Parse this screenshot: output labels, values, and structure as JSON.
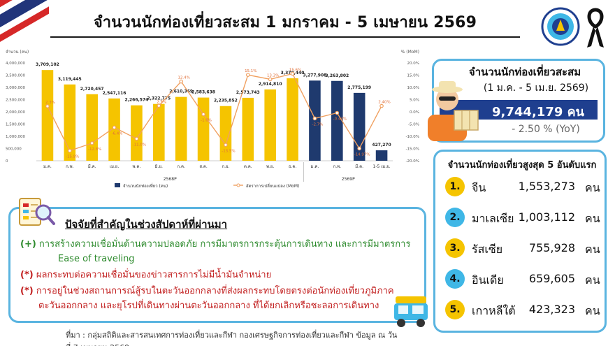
{
  "header": {
    "title": "จำนวนนักท่องเที่ยวสะสม 1 มกราคม - 5 เมษายน 2569"
  },
  "chart_data": {
    "type": "bar",
    "categories": [
      "ม.ค.",
      "ก.พ.",
      "มี.ค.",
      "เม.ย.",
      "พ.ค.",
      "มิ.ย.",
      "ก.ค.",
      "ส.ค.",
      "ก.ย.",
      "ต.ค.",
      "พ.ย.",
      "ธ.ค.",
      "ม.ค.",
      "ก.พ.",
      "มี.ค.",
      "1-5 เม.ย."
    ],
    "groups": [
      {
        "label": "2568P",
        "start": 0,
        "end": 11
      },
      {
        "label": "2569P",
        "start": 12,
        "end": 15
      }
    ],
    "series": [
      {
        "name": "จำนวนนักท่องเที่ยว (คน)",
        "kind": "bar",
        "values": [
          3709102,
          3119445,
          2720457,
          2547116,
          2266574,
          2322775,
          2610369,
          2583638,
          2235852,
          2573743,
          2914810,
          3370440,
          3277908,
          3263802,
          2775199,
          427270
        ],
        "labels": [
          "3,709,102",
          "3,119,445",
          "2,720,457",
          "2,547,116",
          "2,266,574",
          "2,322,775",
          "2,610,369",
          "2,583,638",
          "2,235,852",
          "2,573,743",
          "2,914,810",
          "3,370,440",
          "3,277,908",
          "3,263,802",
          "2,775,199",
          "427,270"
        ],
        "colors": [
          "#f5c400",
          "#f5c400",
          "#f5c400",
          "#f5c400",
          "#f5c400",
          "#f5c400",
          "#f5c400",
          "#f5c400",
          "#f5c400",
          "#f5c400",
          "#f5c400",
          "#f5c400",
          "#1f3a6e",
          "#1f3a6e",
          "#1f3a6e",
          "#1f3a6e"
        ]
      },
      {
        "name": "อัตราการเปลี่ยนแปลง (MoM)",
        "kind": "line",
        "color": "#f0a060",
        "values": [
          2.3,
          -15.9,
          -12.8,
          -6.4,
          -11.0,
          2.5,
          12.4,
          -1.0,
          -13.5,
          15.1,
          13.3,
          15.6,
          -2.7,
          -0.43,
          -14.97,
          2.4
        ],
        "labels": [
          "2.3%",
          "-15.9%",
          "-12.8%",
          "-6.4%",
          "-11.0%",
          "2.5%",
          "12.4%",
          "-1.0%",
          "-13.5%",
          "15.1%",
          "13.3%",
          "15.6%",
          "-2.7%",
          "-0.43%",
          "-14.97%",
          "2.40%"
        ]
      }
    ],
    "ylabel_left": "จำนวน (คน)",
    "ylabel_right": "% (MoM)",
    "ylim_left": [
      0,
      4000000
    ],
    "ylim_right": [
      -20,
      20
    ],
    "yticks_left": [
      "0",
      "500,000",
      "1,000,000",
      "1,500,000",
      "2,000,000",
      "2,500,000",
      "3,000,000",
      "3,500,000",
      "4,000,000"
    ],
    "yticks_right": [
      "-20.0%",
      "-15.0%",
      "-10.0%",
      "-5.0%",
      "0.0%",
      "5.0%",
      "10.0%",
      "15.0%",
      "20.0%"
    ],
    "grid": false,
    "legend_position": "bottom"
  },
  "total_box": {
    "title": "จำนวนนักท่องเที่ยวสะสม",
    "subtitle": "(1 ม.ค. - 5 เม.ย. 2569)",
    "value": "9,744,179 คน",
    "yoy": "- 2.50 % (YoY)"
  },
  "top5": {
    "title": "จำนวนนักท่องเที่ยวสูงสุด 5 อันดับแรก",
    "unit": "คน",
    "items": [
      {
        "rank": "1.",
        "country": "จีน",
        "value": "1,553,273",
        "color": "#f5c400"
      },
      {
        "rank": "2.",
        "country": "มาเลเซีย",
        "value": "1,003,112",
        "color": "#3fb7e6"
      },
      {
        "rank": "3.",
        "country": "รัสเซีย",
        "value": "755,928",
        "color": "#f5c400"
      },
      {
        "rank": "4.",
        "country": "อินเดีย",
        "value": "659,605",
        "color": "#3fb7e6"
      },
      {
        "rank": "5.",
        "country": "เกาหลีใต้",
        "value": "423,323",
        "color": "#f5c400"
      }
    ]
  },
  "factors": {
    "title": "ปัจจัยที่สำคัญในช่วงสัปดาห์ที่ผ่านมา",
    "items": [
      {
        "mark": "(+)",
        "lines": [
          "การสร้างความเชื่อมั่นด้านความปลอดภัย การมีมาตรการกระตุ้นการเดินทาง และการมีมาตรการ",
          "Ease of traveling"
        ],
        "tone": "positive"
      },
      {
        "mark": "(*)",
        "lines": [
          "ผลกระทบต่อความเชื่อมั่นของข่าวสารการไม่มีน้ำมันจำหน่าย"
        ],
        "tone": "negative"
      },
      {
        "mark": "(*)",
        "lines": [
          "การอยู่ในช่วงสถานการณ์สู้รบในตะวันออกกลางที่ส่งผลกระทบโดยตรงต่อนักท่องเที่ยวภูมิภาค",
          "ตะวันออกกลาง และยุโรปที่เดินทางผ่านตะวันออกกลาง ที่ได้ยกเลิกหรือชะลอการเดินทาง"
        ],
        "tone": "negative"
      }
    ]
  },
  "footer": {
    "source": "ที่มา : กลุ่มสถิติและสารสนเทศการท่องเที่ยวและกีฬา กองเศรษฐกิจการท่องเที่ยวและกีฬา ข้อมูล ณ วันที่ 7 เมษายน 2569"
  }
}
